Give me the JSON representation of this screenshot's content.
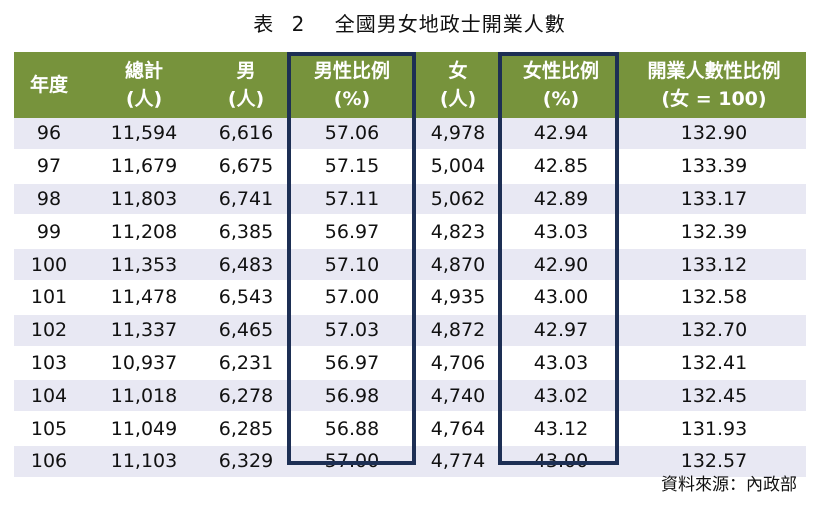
{
  "title": {
    "prefix": "表",
    "number": "2",
    "text": "全國男女地政士開業人數"
  },
  "table": {
    "headers": [
      {
        "line1": "年度",
        "line2": ""
      },
      {
        "line1": "總計",
        "line2": "(人)"
      },
      {
        "line1": "男",
        "line2": "(人)"
      },
      {
        "line1": "男性比例",
        "line2": "(%)"
      },
      {
        "line1": "女",
        "line2": "(人)"
      },
      {
        "line1": "女性比例",
        "line2": "(%)"
      },
      {
        "line1": "開業人數性比例",
        "line2": "(女 = 100)"
      }
    ],
    "rows": [
      [
        "96",
        "11,594",
        "6,616",
        "57.06",
        "4,978",
        "42.94",
        "132.90"
      ],
      [
        "97",
        "11,679",
        "6,675",
        "57.15",
        "5,004",
        "42.85",
        "133.39"
      ],
      [
        "98",
        "11,803",
        "6,741",
        "57.11",
        "5,062",
        "42.89",
        "133.17"
      ],
      [
        "99",
        "11,208",
        "6,385",
        "56.97",
        "4,823",
        "43.03",
        "132.39"
      ],
      [
        "100",
        "11,353",
        "6,483",
        "57.10",
        "4,870",
        "42.90",
        "133.12"
      ],
      [
        "101",
        "11,478",
        "6,543",
        "57.00",
        "4,935",
        "43.00",
        "132.58"
      ],
      [
        "102",
        "11,337",
        "6,465",
        "57.03",
        "4,872",
        "42.97",
        "132.70"
      ],
      [
        "103",
        "10,937",
        "6,231",
        "56.97",
        "4,706",
        "43.03",
        "132.41"
      ],
      [
        "104",
        "11,018",
        "6,278",
        "56.98",
        "4,740",
        "43.02",
        "132.45"
      ],
      [
        "105",
        "11,049",
        "6,285",
        "56.88",
        "4,764",
        "43.12",
        "131.93"
      ],
      [
        "106",
        "11,103",
        "6,329",
        "57.00",
        "4,774",
        "43.00",
        "132.57"
      ]
    ]
  },
  "source": "資料來源：內政部",
  "colors": {
    "header_bg": "#77933c",
    "band": "#e8e8f3",
    "highlight_border": "#1d2f54"
  }
}
